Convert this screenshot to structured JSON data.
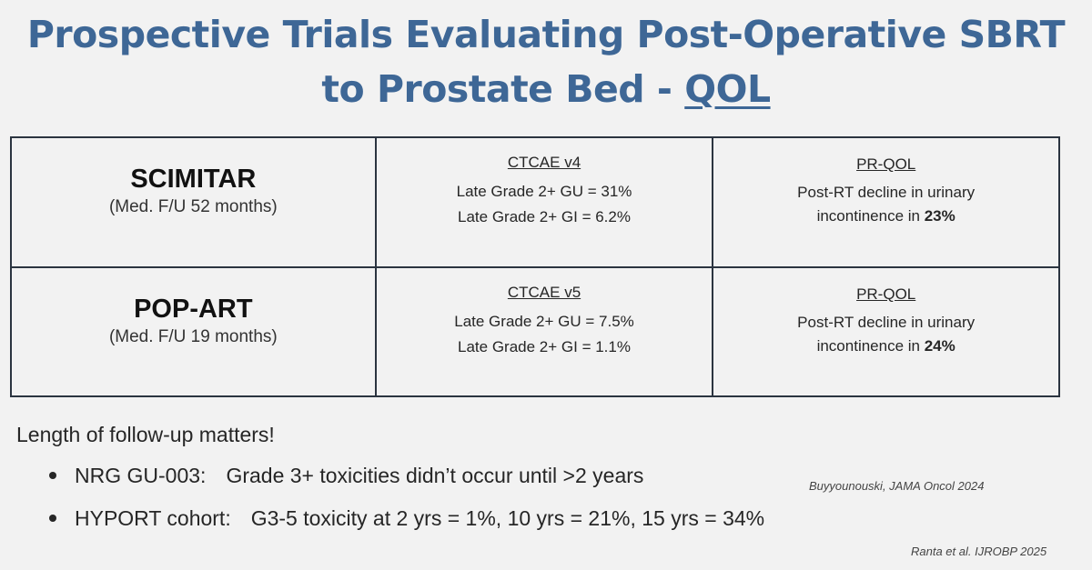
{
  "title": {
    "line1": "Prospective Trials Evaluating Post-Operative SBRT",
    "line2_prefix": "to Prostate Bed - ",
    "line2_underlined": "QOL"
  },
  "trials": [
    {
      "name": "SCIMITAR",
      "followup": "(Med. F/U 52 months)",
      "ctcae_header": "CTCAE v4",
      "gu": "Late Grade 2+ GU = 31%",
      "gi": "Late Grade 2+ GI = 6.2%",
      "prqol_header": "PR-QOL",
      "prqol_line1": "Post-RT decline in urinary",
      "prqol_line2_prefix": "incontinence in ",
      "prqol_value": "23%"
    },
    {
      "name": "POP-ART",
      "followup": "(Med. F/U 19 months)",
      "ctcae_header": "CTCAE v5",
      "gu": "Late Grade 2+ GU = 7.5%",
      "gi": "Late Grade 2+ GI = 1.1%",
      "prqol_header": "PR-QOL",
      "prqol_line1": "Post-RT decline in urinary",
      "prqol_line2_prefix": "incontinence in ",
      "prqol_value": "24%"
    }
  ],
  "note": "Length of follow-up matters!",
  "bullets": [
    {
      "lead": "NRG GU-003:",
      "text": "Grade 3+ toxicities didn’t occur until >2 years",
      "citation": "Buyyounouski, JAMA Oncol 2024"
    },
    {
      "lead": "HYPORT cohort:",
      "text": "G3-5 toxicity at 2 yrs = 1%, 10 yrs = 21%, 15 yrs = 34%",
      "citation": "Ranta et al. IJROBP 2025"
    }
  ],
  "colors": {
    "title": "#3e6796",
    "background": "#f2f2f2",
    "table_border": "#2b3440"
  }
}
